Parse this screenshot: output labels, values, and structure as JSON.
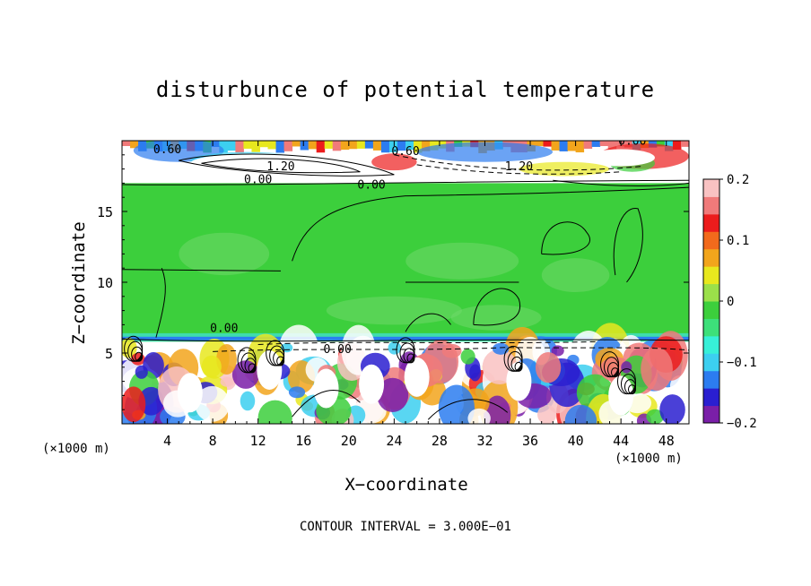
{
  "chart_data": {
    "type": "heatmap",
    "title": "disturbunce of potential temperature",
    "xlabel": "X−coordinate",
    "ylabel": "Z−coordinate",
    "x_unit": "(×1000 m)",
    "z_unit": "(×1000 m)",
    "footer": "CONTOUR INTERVAL = 3.000E−01",
    "xlim": [
      0,
      50
    ],
    "zlim": [
      0,
      20
    ],
    "x_ticks": [
      "4",
      "8",
      "12",
      "16",
      "20",
      "24",
      "28",
      "32",
      "36",
      "40",
      "44",
      "48"
    ],
    "x_tick_values": [
      4,
      8,
      12,
      16,
      20,
      24,
      28,
      32,
      36,
      40,
      44,
      48
    ],
    "z_ticks": [
      "5",
      "10",
      "15"
    ],
    "z_tick_values": [
      5,
      10,
      15
    ],
    "colorbar": {
      "range": [
        -0.2,
        0.2
      ],
      "tick_labels": [
        "0.2",
        "0.1",
        "0",
        "−0.1",
        "−0.2"
      ],
      "tick_values": [
        0.2,
        0.1,
        0,
        -0.1,
        -0.2
      ],
      "colors": [
        "#7a1fa8",
        "#2a1fd0",
        "#2c7cf0",
        "#3ccff0",
        "#37f0d8",
        "#3de07a",
        "#3ccf3c",
        "#9be04a",
        "#e8e81e",
        "#f2a51c",
        "#f26a1c",
        "#ec1c1c",
        "#f07a7a",
        "#f9c2c2"
      ]
    },
    "contour_labels": [
      "0.60",
      "1.20",
      "0.00",
      "0.60",
      "1.20",
      "0.00",
      "0.00",
      "0.00",
      "0.00"
    ],
    "background_value": 0,
    "grid": false
  }
}
